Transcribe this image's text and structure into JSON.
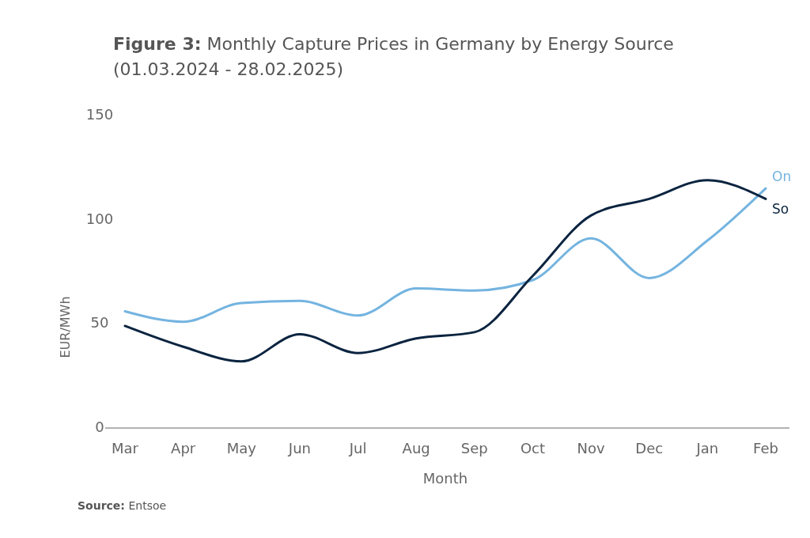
{
  "chart_data": {
    "type": "line",
    "title": "Figure 3: Monthly Capture Prices in Germany by Energy Source",
    "subtitle": "(01.03.2024 -  28.02.2025)",
    "xlabel": "Month",
    "ylabel": "EUR/MWh",
    "categories": [
      "Mar",
      "Apr",
      "May",
      "Jun",
      "Jul",
      "Aug",
      "Sep",
      "Oct",
      "Nov",
      "Dec",
      "Jan",
      "Feb"
    ],
    "series": [
      {
        "name": "On",
        "color": "#74b4e0",
        "values": [
          56,
          51,
          60,
          61,
          54,
          67,
          66,
          71,
          91,
          72,
          90,
          115
        ]
      },
      {
        "name": "So",
        "color": "#0b2440",
        "values": [
          49,
          39,
          32,
          45,
          36,
          43,
          46,
          73,
          102,
          110,
          119,
          110
        ]
      }
    ],
    "ylim": [
      0,
      150
    ],
    "yticks": [
      0,
      50,
      100,
      150
    ],
    "grid": false,
    "marker": "none",
    "line_style": "solid",
    "annotations": [
      "Source: Entsoe"
    ]
  }
}
